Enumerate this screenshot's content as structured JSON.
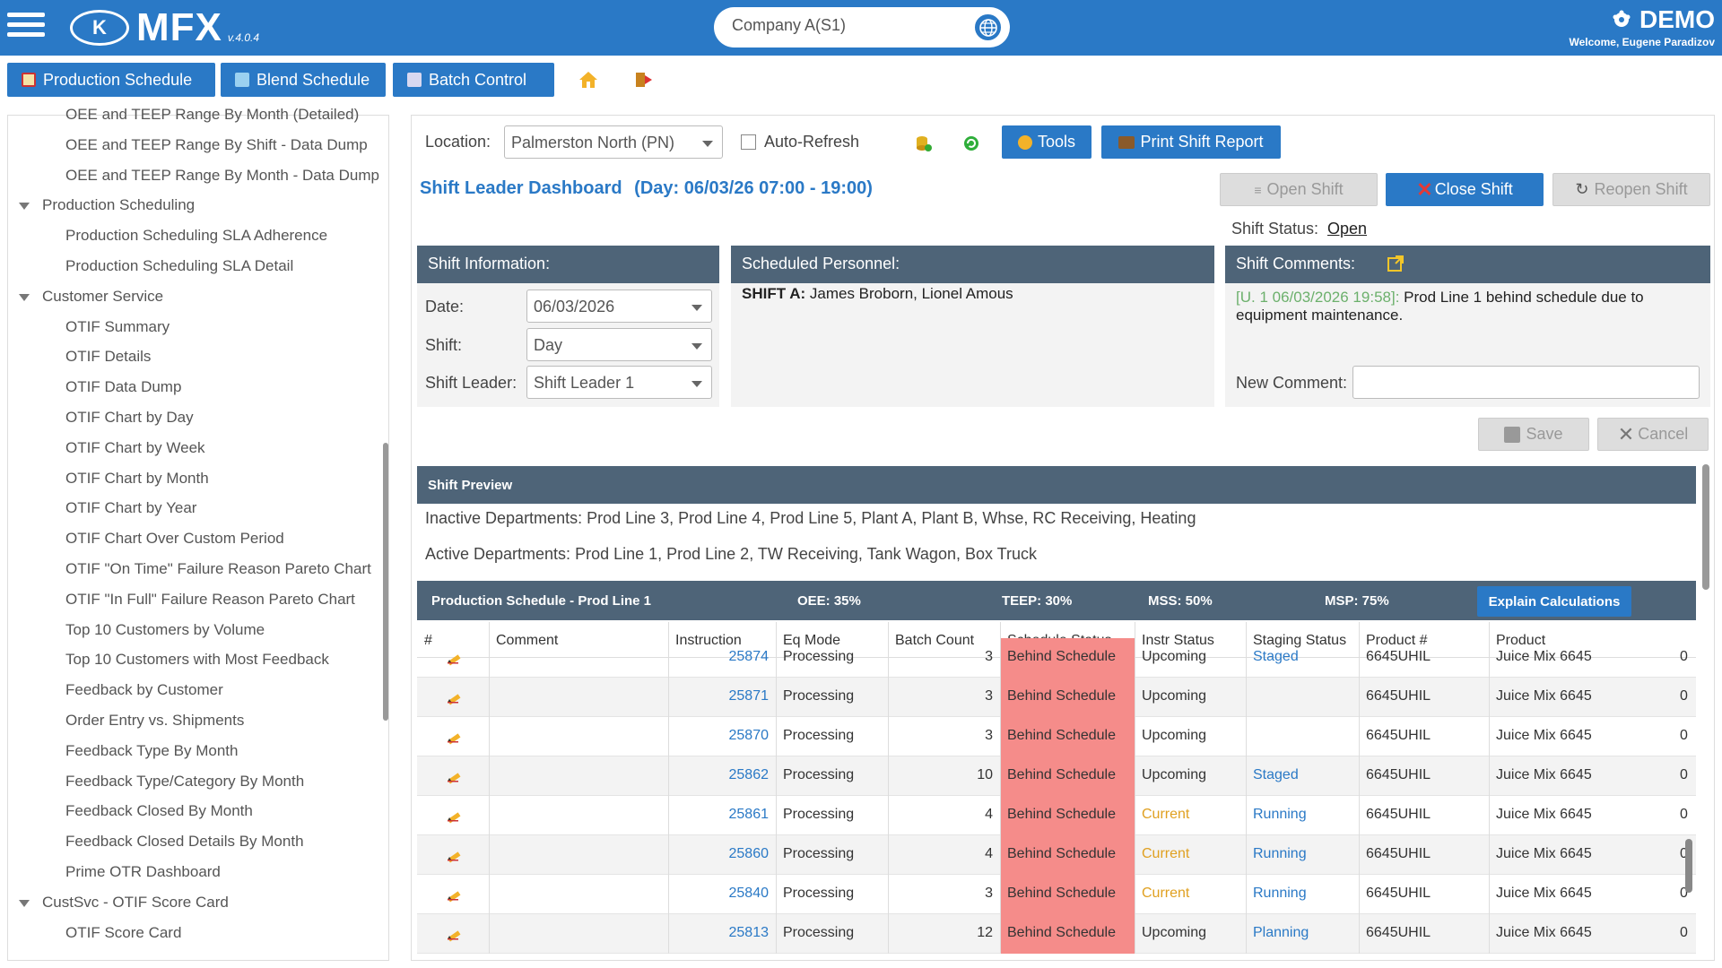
{
  "header": {
    "logo_mark": "K",
    "logo_text": "MFX",
    "version": "v.4.0.4",
    "company": "Company A(S1)",
    "app_mode": "DEMO",
    "welcome": "Welcome, Eugene Paradizov"
  },
  "nav": {
    "production_schedule": "Production Schedule",
    "blend_schedule": "Blend Schedule",
    "batch_control": "Batch Control"
  },
  "sidebar": {
    "items": [
      {
        "label": "OEE and TEEP Range By Month (Detailed)",
        "level": 2
      },
      {
        "label": "OEE and TEEP Range By Shift - Data Dump",
        "level": 2
      },
      {
        "label": "OEE and TEEP Range By Month - Data Dump",
        "level": 2
      },
      {
        "label": "Production Scheduling",
        "level": 1
      },
      {
        "label": "Production Scheduling SLA Adherence",
        "level": 2
      },
      {
        "label": "Production Scheduling SLA Detail",
        "level": 2
      },
      {
        "label": "Customer Service",
        "level": 1
      },
      {
        "label": "OTIF Summary",
        "level": 2
      },
      {
        "label": "OTIF Details",
        "level": 2
      },
      {
        "label": "OTIF Data Dump",
        "level": 2
      },
      {
        "label": "OTIF Chart by Day",
        "level": 2
      },
      {
        "label": "OTIF Chart by Week",
        "level": 2
      },
      {
        "label": "OTIF Chart by Month",
        "level": 2
      },
      {
        "label": "OTIF Chart by Year",
        "level": 2
      },
      {
        "label": "OTIF Chart Over Custom Period",
        "level": 2
      },
      {
        "label": "OTIF \"On Time\" Failure Reason Pareto Chart",
        "level": 2
      },
      {
        "label": "OTIF \"In Full\" Failure Reason Pareto Chart",
        "level": 2
      },
      {
        "label": "Top 10 Customers by Volume",
        "level": 2
      },
      {
        "label": "Top 10 Customers with Most Feedback",
        "level": 2
      },
      {
        "label": "Feedback by Customer",
        "level": 2
      },
      {
        "label": "Order Entry vs. Shipments",
        "level": 2
      },
      {
        "label": "Feedback Type By Month",
        "level": 2
      },
      {
        "label": "Feedback Type/Category By Month",
        "level": 2
      },
      {
        "label": "Feedback Closed By Month",
        "level": 2
      },
      {
        "label": "Feedback Closed Details By Month",
        "level": 2
      },
      {
        "label": "Prime OTR Dashboard",
        "level": 2
      },
      {
        "label": "CustSvc - OTIF Score Card",
        "level": 1
      },
      {
        "label": "OTIF Score Card",
        "level": 2
      }
    ]
  },
  "toolbar": {
    "location_label": "Location:",
    "location_value": "Palmerston North (PN)",
    "auto_refresh_label": "Auto-Refresh",
    "tools_label": "Tools",
    "print_label": "Print Shift Report"
  },
  "dashboard": {
    "title": "Shift Leader Dashboard",
    "day_range": "(Day: 06/03/26 07:00 - 19:00)",
    "open_shift": "Open Shift",
    "close_shift": "Close Shift",
    "reopen_shift": "Reopen Shift",
    "shift_status_label": "Shift Status:",
    "shift_status_value": "Open"
  },
  "shift_info": {
    "heading": "Shift Information:",
    "date_label": "Date:",
    "date_value": "06/03/2026",
    "shift_label": "Shift:",
    "shift_value": "Day",
    "leader_label": "Shift Leader:",
    "leader_value": "Shift Leader 1"
  },
  "personnel": {
    "heading": "Scheduled Personnel:",
    "shift_label": "SHIFT A:",
    "names": "James Broborn, Lionel Amous"
  },
  "comments": {
    "heading": "Shift Comments:",
    "entry_meta": "[U. 1 06/03/2026 19:58]:",
    "entry_text": "Prod Line 1 behind schedule due to equipment maintenance.",
    "new_comment_label": "New Comment:",
    "save_label": "Save",
    "cancel_label": "Cancel"
  },
  "preview": {
    "heading": "Shift Preview",
    "inactive": "Inactive Departments: Prod Line 3, Prod Line 4, Prod Line 5, Plant A, Plant B, Whse, RC Receiving, Heating",
    "active": "Active Departments: Prod Line 1, Prod Line 2, TW Receiving, Tank Wagon, Box Truck"
  },
  "schedule": {
    "title": "Production Schedule - Prod Line 1",
    "oee": "OEE: 35%",
    "teep": "TEEP: 30%",
    "mss": "MSS: 50%",
    "msp": "MSP: 75%",
    "explain_label": "Explain Calculations",
    "columns": [
      "#",
      "Comment",
      "Instruction",
      "Eq Mode",
      "Batch Count",
      "Schedule Status",
      "Instr Status",
      "Staging Status",
      "Product #",
      "Product"
    ],
    "rows": [
      {
        "instruction": "25874",
        "eq_mode": "Processing",
        "batch": "3",
        "schedule": "Behind Schedule",
        "instr": "Upcoming",
        "staging": "Staged",
        "product_no": "6645UHIL",
        "product": "Juice Mix 6645",
        "extra": "0"
      },
      {
        "instruction": "25871",
        "eq_mode": "Processing",
        "batch": "3",
        "schedule": "Behind Schedule",
        "instr": "Upcoming",
        "staging": "",
        "product_no": "6645UHIL",
        "product": "Juice Mix 6645",
        "extra": "0"
      },
      {
        "instruction": "25870",
        "eq_mode": "Processing",
        "batch": "3",
        "schedule": "Behind Schedule",
        "instr": "Upcoming",
        "staging": "",
        "product_no": "6645UHIL",
        "product": "Juice Mix 6645",
        "extra": "0"
      },
      {
        "instruction": "25862",
        "eq_mode": "Processing",
        "batch": "10",
        "schedule": "Behind Schedule",
        "instr": "Upcoming",
        "staging": "Staged",
        "product_no": "6645UHIL",
        "product": "Juice Mix 6645",
        "extra": "0"
      },
      {
        "instruction": "25861",
        "eq_mode": "Processing",
        "batch": "4",
        "schedule": "Behind Schedule",
        "instr": "Current",
        "staging": "Running",
        "product_no": "6645UHIL",
        "product": "Juice Mix 6645",
        "extra": "0"
      },
      {
        "instruction": "25860",
        "eq_mode": "Processing",
        "batch": "4",
        "schedule": "Behind Schedule",
        "instr": "Current",
        "staging": "Running",
        "product_no": "6645UHIL",
        "product": "Juice Mix 6645",
        "extra": "0"
      },
      {
        "instruction": "25840",
        "eq_mode": "Processing",
        "batch": "3",
        "schedule": "Behind Schedule",
        "instr": "Current",
        "staging": "Running",
        "product_no": "6645UHIL",
        "product": "Juice Mix 6645",
        "extra": "0"
      },
      {
        "instruction": "25813",
        "eq_mode": "Processing",
        "batch": "12",
        "schedule": "Behind Schedule",
        "instr": "Upcoming",
        "staging": "Planning",
        "product_no": "6645UHIL",
        "product": "Juice Mix 6645",
        "extra": "0"
      }
    ]
  },
  "colors": {
    "brand": "#2a79c6",
    "panel_header": "#4e6478",
    "behind_schedule": "#f58c8a",
    "current": "#e0a020",
    "link": "#2a79c6",
    "comment_meta": "#6cb06c"
  }
}
